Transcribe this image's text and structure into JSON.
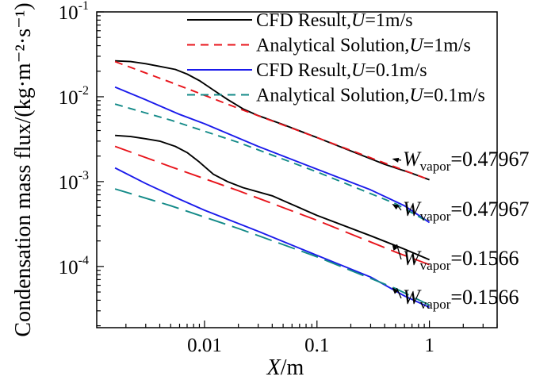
{
  "chart_data": {
    "type": "line",
    "title": "",
    "xlabel": {
      "var": "X",
      "unit": "/m"
    },
    "ylabel": "Condensation mass flux/(kg·m⁻²·s⁻¹)",
    "xscale": "log",
    "yscale": "log",
    "xlim": [
      0.0011,
      4
    ],
    "ylim": [
      1.9e-05,
      0.1
    ],
    "x_ticks": [
      {
        "value": 0.01,
        "label": "0.01"
      },
      {
        "value": 0.1,
        "label": "0.1"
      },
      {
        "value": 1,
        "label": "1"
      }
    ],
    "y_ticks": [
      {
        "value": 0.0001,
        "base": "10",
        "exp": "-4"
      },
      {
        "value": 0.001,
        "base": "10",
        "exp": "-3"
      },
      {
        "value": 0.01,
        "base": "10",
        "exp": "-2"
      },
      {
        "value": 0.1,
        "base": "10",
        "exp": "-1"
      }
    ],
    "legend": {
      "placement": "top-right",
      "entries": [
        {
          "prefix": "CFD Result,",
          "var": "U",
          "suffix": "=1m/s",
          "color": "#000000",
          "dash": "solid"
        },
        {
          "prefix": "Analytical Solution,",
          "var": "U",
          "suffix": "=1m/s",
          "color": "#e8141b",
          "dash": "dashed"
        },
        {
          "prefix": "CFD Result,",
          "var": "U",
          "suffix": "=0.1m/s",
          "color": "#1a1aeb",
          "dash": "solid"
        },
        {
          "prefix": "Analytical Solution,",
          "var": "U",
          "suffix": "=0.1m/s",
          "color": "#138a88",
          "dash": "dashed"
        }
      ]
    },
    "series": [
      {
        "name": "CFD Result, U=1m/s, W_vapor=0.47967",
        "color": "#000000",
        "dash": "solid",
        "points": [
          [
            0.0016,
            0.0265
          ],
          [
            0.0022,
            0.026
          ],
          [
            0.003,
            0.0245
          ],
          [
            0.004,
            0.0228
          ],
          [
            0.0055,
            0.021
          ],
          [
            0.007,
            0.0185
          ],
          [
            0.009,
            0.0155
          ],
          [
            0.012,
            0.012
          ],
          [
            0.016,
            0.0093
          ],
          [
            0.022,
            0.0072
          ],
          [
            0.03,
            0.006
          ],
          [
            0.05,
            0.0047
          ],
          [
            0.1,
            0.0033
          ],
          [
            0.2,
            0.0023
          ],
          [
            0.4,
            0.0016
          ],
          [
            0.7,
            0.00125
          ],
          [
            1,
            0.00105
          ]
        ]
      },
      {
        "name": "Analytical Solution, U=1m/s, W_vapor=0.47967",
        "color": "#e8141b",
        "dash": "dashed",
        "points": [
          [
            0.0016,
            0.026
          ],
          [
            0.005,
            0.0148
          ],
          [
            0.02,
            0.0073
          ],
          [
            0.1,
            0.0033
          ],
          [
            0.5,
            0.00148
          ],
          [
            1,
            0.00105
          ]
        ]
      },
      {
        "name": "CFD Result, U=0.1m/s, W_vapor=0.47967",
        "color": "#1a1aeb",
        "dash": "solid",
        "points": [
          [
            0.0016,
            0.013
          ],
          [
            0.003,
            0.0092
          ],
          [
            0.006,
            0.0062
          ],
          [
            0.01,
            0.0048
          ],
          [
            0.03,
            0.0026
          ],
          [
            0.1,
            0.0014
          ],
          [
            0.3,
            0.0008
          ],
          [
            0.6,
            0.00052
          ],
          [
            1,
            0.00033
          ]
        ]
      },
      {
        "name": "Analytical Solution, U=0.1m/s, W_vapor=0.47967",
        "color": "#138a88",
        "dash": "dashed",
        "points": [
          [
            0.0016,
            0.0082
          ],
          [
            0.005,
            0.0053
          ],
          [
            0.02,
            0.0029
          ],
          [
            0.1,
            0.0013
          ],
          [
            0.5,
            0.00055
          ],
          [
            1,
            0.00033
          ]
        ]
      },
      {
        "name": "CFD Result, U=1m/s, W_vapor=0.1566",
        "color": "#000000",
        "dash": "solid",
        "points": [
          [
            0.0016,
            0.0035
          ],
          [
            0.0022,
            0.0034
          ],
          [
            0.003,
            0.0032
          ],
          [
            0.004,
            0.003
          ],
          [
            0.0055,
            0.0026
          ],
          [
            0.007,
            0.0022
          ],
          [
            0.009,
            0.0017
          ],
          [
            0.012,
            0.00122
          ],
          [
            0.016,
            0.001
          ],
          [
            0.022,
            0.00085
          ],
          [
            0.04,
            0.00068
          ],
          [
            0.1,
            0.0004
          ],
          [
            0.3,
            0.00023
          ],
          [
            0.6,
            0.00016
          ],
          [
            1,
            0.00012
          ]
        ]
      },
      {
        "name": "Analytical Solution, U=1m/s, W_vapor=0.1566",
        "color": "#e8141b",
        "dash": "dashed",
        "points": [
          [
            0.0016,
            0.0026
          ],
          [
            0.005,
            0.0015
          ],
          [
            0.02,
            0.00078
          ],
          [
            0.1,
            0.00035
          ],
          [
            0.5,
            0.000148
          ],
          [
            1,
            0.000105
          ]
        ]
      },
      {
        "name": "CFD Result, U=0.1m/s, W_vapor=0.1566",
        "color": "#1a1aeb",
        "dash": "solid",
        "points": [
          [
            0.0016,
            0.00145
          ],
          [
            0.003,
            0.00095
          ],
          [
            0.006,
            0.00062
          ],
          [
            0.01,
            0.00046
          ],
          [
            0.03,
            0.00026
          ],
          [
            0.1,
            0.000135
          ],
          [
            0.3,
            7.5e-05
          ],
          [
            0.6,
            4.5e-05
          ],
          [
            1,
            3.3e-05
          ]
        ]
      },
      {
        "name": "Analytical Solution, U=0.1m/s, W_vapor=0.1566",
        "color": "#138a88",
        "dash": "dashed",
        "points": [
          [
            0.0016,
            0.00082
          ],
          [
            0.005,
            0.00052
          ],
          [
            0.02,
            0.00028
          ],
          [
            0.1,
            0.00013
          ],
          [
            0.5,
            5.5e-05
          ],
          [
            1,
            3.5e-05
          ]
        ]
      }
    ],
    "annotations": [
      {
        "var": "W",
        "sub": "vapor",
        "value": "=0.47967",
        "x": 0.45,
        "y": 0.0019
      },
      {
        "var": "W",
        "sub": "vapor",
        "value": "=0.47967",
        "x": 0.45,
        "y": 0.00056
      },
      {
        "var": "W",
        "sub": "vapor",
        "value": "=0.1566",
        "x": 0.45,
        "y": 0.00019
      },
      {
        "var": "W",
        "sub": "vapor",
        "value": "=0.1566",
        "x": 0.45,
        "y": 5.8e-05
      }
    ]
  }
}
